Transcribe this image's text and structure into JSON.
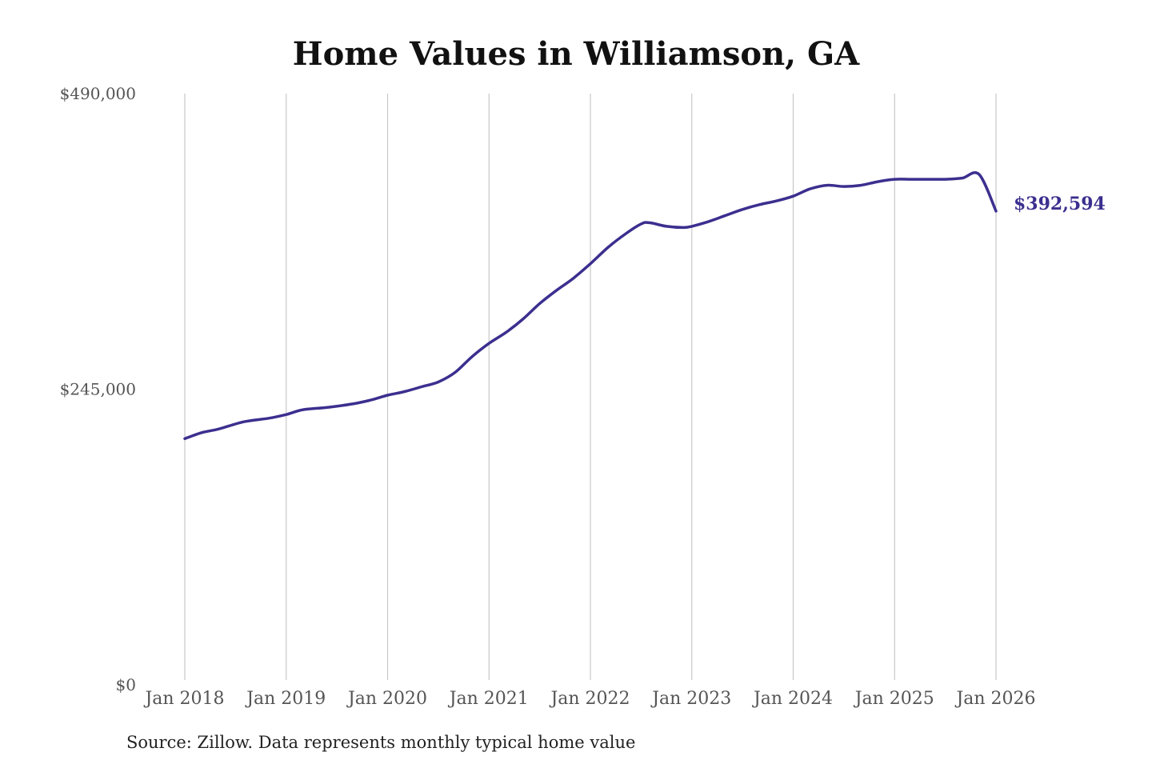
{
  "chart_data": {
    "type": "line",
    "title": "Home Values in Williamson, GA",
    "xlabel": "",
    "ylabel": "",
    "ylim": [
      0,
      490000
    ],
    "y_ticks": [
      {
        "value": 0,
        "label": "$0"
      },
      {
        "value": 245000,
        "label": "$245,000"
      },
      {
        "value": 490000,
        "label": "$490,000"
      }
    ],
    "x_ticks": [
      "Jan 2018",
      "Jan 2019",
      "Jan 2020",
      "Jan 2021",
      "Jan 2022",
      "Jan 2023",
      "Jan 2024",
      "Jan 2025",
      "Jan 2026"
    ],
    "grid": "vertical",
    "line_color": "#3b2f8f",
    "series": [
      {
        "x": [
          "2018-01",
          "2018-03",
          "2018-05",
          "2018-08",
          "2018-11",
          "2019-01",
          "2019-03",
          "2019-06",
          "2019-09",
          "2019-11",
          "2020-01",
          "2020-03",
          "2020-05",
          "2020-07",
          "2020-09",
          "2020-11",
          "2021-01",
          "2021-03",
          "2021-05",
          "2021-07",
          "2021-09",
          "2021-11",
          "2022-01",
          "2022-03",
          "2022-05",
          "2022-07",
          "2022-08",
          "2022-10",
          "2022-12",
          "2023-01",
          "2023-03",
          "2023-05",
          "2023-07",
          "2023-09",
          "2023-11",
          "2024-01",
          "2024-03",
          "2024-05",
          "2024-07",
          "2024-09",
          "2024-11",
          "2025-01",
          "2025-03",
          "2025-05",
          "2025-07",
          "2025-09",
          "2025-11",
          "2026-01"
        ],
        "values": [
          204000,
          209000,
          212000,
          218000,
          221000,
          224000,
          228000,
          230000,
          233000,
          236000,
          240000,
          243000,
          247000,
          251000,
          259000,
          272000,
          283000,
          292000,
          303000,
          316000,
          327000,
          337000,
          349000,
          362000,
          373000,
          382000,
          383000,
          380000,
          379000,
          380000,
          384000,
          389000,
          394000,
          398000,
          401000,
          405000,
          411000,
          414000,
          413000,
          414000,
          417000,
          419000,
          419000,
          419000,
          419000,
          420000,
          423000,
          392594
        ]
      }
    ],
    "end_label": "$392,594",
    "source": "Source: Zillow. Data represents monthly typical home value"
  }
}
